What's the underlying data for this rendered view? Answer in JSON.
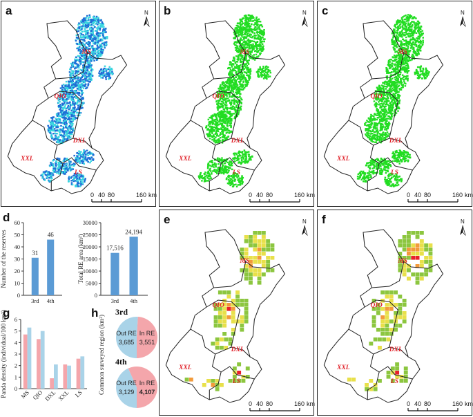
{
  "panels": {
    "a": "a",
    "b": "b",
    "c": "c",
    "d": "d",
    "e": "e",
    "f": "f",
    "g": "g",
    "h": "h"
  },
  "map": {
    "north_label": "N",
    "regions": {
      "ms": "MS",
      "qio": "QIO",
      "dxl": "DXL",
      "xxl": "XXL",
      "ls": "LS"
    },
    "scale": {
      "t0": "0",
      "t1": "40",
      "t2": "80",
      "t3": "160",
      "unit": "km"
    }
  },
  "colors": {
    "habitat_dark": "#1f6fd6",
    "habitat_light": "#39d6e0",
    "habitat_green": "#22dd22",
    "density_low": "#8cc63f",
    "density_mid": "#e8e04a",
    "density_high": "#f29a3a",
    "density_max": "#e8202a",
    "bar_blue": "#5b9bd5",
    "bar_pink": "#f4a6ab",
    "bar_lightblue": "#a9d3e8",
    "pie_blue": "#a9d3e8",
    "pie_pink": "#f4a6ab"
  },
  "chart_data": [
    {
      "type": "bar",
      "categories": [
        "3rd",
        "4th"
      ],
      "values": [
        31,
        46
      ],
      "value_labels": [
        "31",
        "46"
      ],
      "ylabel": "Number of the reserves",
      "ylim": [
        0,
        60
      ],
      "yticks": [
        "0",
        "10",
        "20",
        "30",
        "40",
        "50",
        "60"
      ]
    },
    {
      "type": "bar",
      "categories": [
        "3rd",
        "4th"
      ],
      "values": [
        17516,
        24194
      ],
      "value_labels": [
        "17,516",
        "24,194"
      ],
      "ylabel": "Total RE area (km²)",
      "ylim": [
        0,
        30000
      ],
      "yticks": [
        "0",
        "5000",
        "10000",
        "15000",
        "20000",
        "25000",
        "30000"
      ]
    },
    {
      "type": "bar",
      "categories": [
        "MS",
        "QIO",
        "DXL",
        "XXL",
        "LS"
      ],
      "series": [
        {
          "values": [
            4.7,
            4.3,
            0.9,
            2.1,
            2.6
          ]
        },
        {
          "values": [
            5.3,
            5.0,
            2.1,
            2.0,
            2.8
          ]
        }
      ],
      "ylabel": "Panda density (individual/100 km²)",
      "ylim": [
        0,
        6
      ],
      "yticks": [
        "0",
        "1",
        "2",
        "3",
        "4",
        "5",
        "6"
      ]
    },
    {
      "type": "pie",
      "ylabel": "Common surveyed region (km²)",
      "pies": [
        {
          "title": "3rd",
          "slices": [
            {
              "label": "Out RE",
              "value": 3685,
              "value_label": "3,685"
            },
            {
              "label": "In RE",
              "value": 3551,
              "value_label": "3,551"
            }
          ]
        },
        {
          "title": "4th",
          "slices": [
            {
              "label": "Out RE",
              "value": 3129,
              "value_label": "3,129"
            },
            {
              "label": "In RE",
              "value": 4107,
              "value_label": "4,107"
            }
          ]
        }
      ]
    }
  ]
}
